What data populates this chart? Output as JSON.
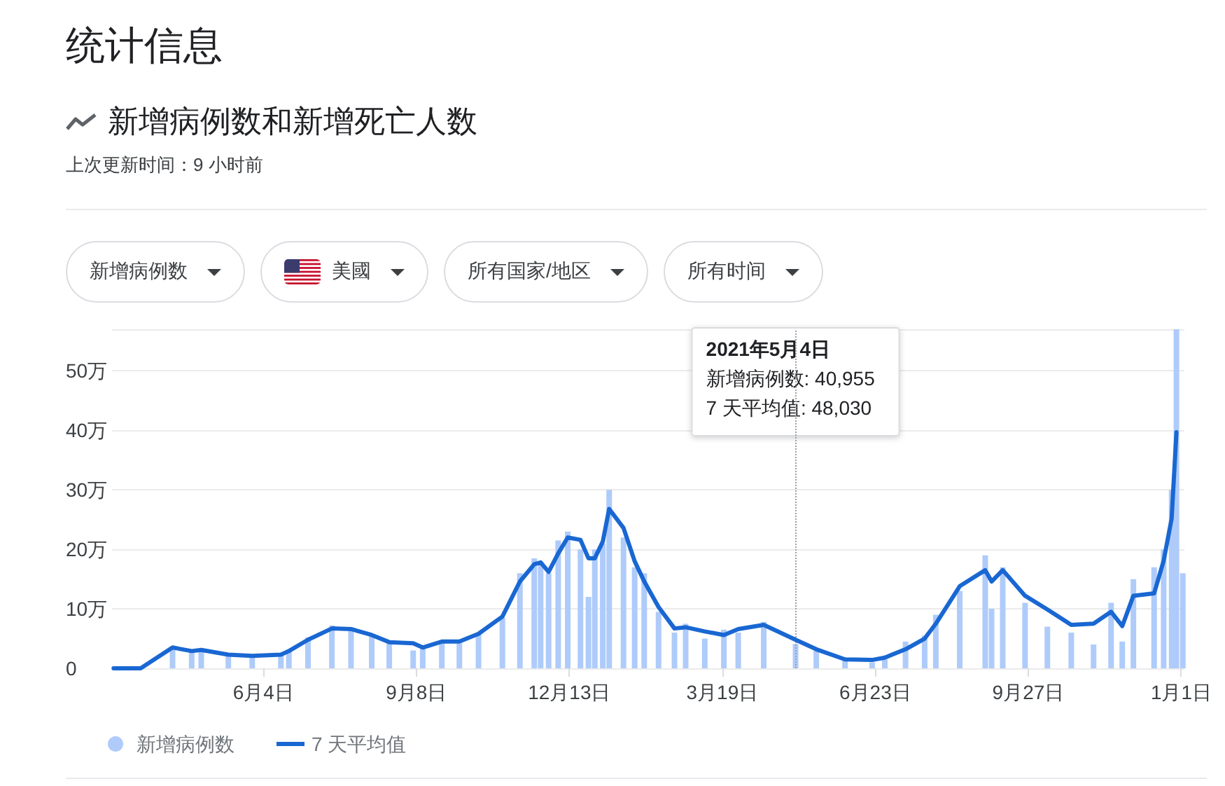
{
  "chart_data": {
    "type": "bar",
    "title": "统计信息",
    "subtitle": "新增病例数和新增死亡人数",
    "annotations": [
      "上次更新时间：9 小时前",
      "新增病例数",
      "美國",
      "所有国家/地区",
      "所有时间",
      "2021年5月4日",
      "新增病例数: 40,955",
      "7 天平均值: 48,030"
    ],
    "x": [
      "2020-03-02",
      "2020-03-19",
      "2020-04-08",
      "2020-04-20",
      "2020-04-26",
      "2020-05-13",
      "2020-05-28",
      "2020-06-15",
      "2020-06-20",
      "2020-07-02",
      "2020-07-17",
      "2020-07-29",
      "2020-08-11",
      "2020-08-22",
      "2020-09-06",
      "2020-09-12",
      "2020-09-24",
      "2020-10-05",
      "2020-10-17",
      "2020-11-01",
      "2020-11-12",
      "2020-11-21",
      "2020-11-25",
      "2020-11-30",
      "2020-12-06",
      "2020-12-12",
      "2020-12-20",
      "2020-12-25",
      "2020-12-29",
      "2021-01-03",
      "2021-01-07",
      "2021-01-16",
      "2021-01-23",
      "2021-01-29",
      "2021-02-07",
      "2021-02-17",
      "2021-02-24",
      "2021-03-08",
      "2021-03-20",
      "2021-03-29",
      "2021-04-14",
      "2021-05-04",
      "2021-05-17",
      "2021-06-04",
      "2021-06-21",
      "2021-06-29",
      "2021-07-12",
      "2021-07-24",
      "2021-07-31",
      "2021-08-15",
      "2021-08-31",
      "2021-09-04",
      "2021-09-11",
      "2021-09-25",
      "2021-10-09",
      "2021-10-24",
      "2021-11-07",
      "2021-11-18",
      "2021-11-25",
      "2021-12-02",
      "2021-12-15",
      "2021-12-21",
      "2021-12-26",
      "2021-12-29",
      "2022-01-02"
    ],
    "series": [
      {
        "name": "新增病例数",
        "color": "#aecbfa",
        "values": [
          0,
          null,
          3.3,
          2.8,
          3,
          2.2,
          2.1,
          2.2,
          3.2,
          5.2,
          7.2,
          6.8,
          5.5,
          4.5,
          3,
          3.8,
          4.7,
          4.2,
          6,
          8.5,
          16,
          18.5,
          18,
          16,
          21.5,
          23,
          20,
          12,
          20,
          21,
          30,
          22,
          17,
          16,
          9.5,
          6,
          7.5,
          5,
          6.5,
          6,
          7.8,
          4.1,
          3,
          1.4,
          1,
          1.5,
          4.5,
          5.5,
          9,
          13,
          19,
          10,
          17,
          11,
          7,
          6,
          4,
          11,
          4.5,
          15,
          17,
          20,
          30,
          57,
          16
        ]
      },
      {
        "name": "7 天平均值",
        "type": "line",
        "color": "#1967d2",
        "values": [
          0,
          0,
          3.5,
          2.9,
          3.1,
          2.3,
          2.1,
          2.3,
          2.9,
          4.8,
          6.7,
          6.6,
          5.6,
          4.4,
          4.2,
          3.5,
          4.5,
          4.5,
          5.8,
          8.7,
          14.6,
          17.5,
          17.8,
          16.2,
          19.3,
          22,
          21.6,
          18.5,
          18.5,
          21.3,
          26.8,
          23.6,
          18,
          14.6,
          10.3,
          6.7,
          6.9,
          6.2,
          5.6,
          6.6,
          7.3,
          4.8,
          3.2,
          1.5,
          1.4,
          1.8,
          3.2,
          5,
          7.5,
          13.8,
          16.5,
          14.6,
          16.5,
          12.2,
          9.9,
          7.3,
          7.5,
          9.5,
          7.1,
          12.2,
          12.6,
          18.1,
          25.2,
          39.7,
          null
        ]
      }
    ],
    "xlim": [
      "2020-03-01",
      "2022-01-03"
    ],
    "xticks": [
      {
        "value": "2020-06-04",
        "label": "6月4日"
      },
      {
        "value": "2020-09-08",
        "label": "9月8日"
      },
      {
        "value": "2020-12-13",
        "label": "12月13日"
      },
      {
        "value": "2021-03-19",
        "label": "3月19日"
      },
      {
        "value": "2021-06-23",
        "label": "6月23日"
      },
      {
        "value": "2021-09-27",
        "label": "9月27日"
      },
      {
        "value": "2022-01-01",
        "label": "1月1日"
      }
    ],
    "ylim": [
      0,
      57
    ],
    "yticks": [
      0,
      {
        "value": 10,
        "label": "10万"
      },
      {
        "value": 20,
        "label": "20万"
      },
      {
        "value": 30,
        "label": "30万"
      },
      {
        "value": 40,
        "label": "40万"
      },
      {
        "value": 50,
        "label": "50万"
      }
    ],
    "ref_lines": [
      {
        "axis": "x",
        "value": "2021-05-04",
        "line_style": "dotted",
        "color": "#9aa0a6"
      }
    ],
    "grid": "y",
    "legend": "bottom"
  }
}
